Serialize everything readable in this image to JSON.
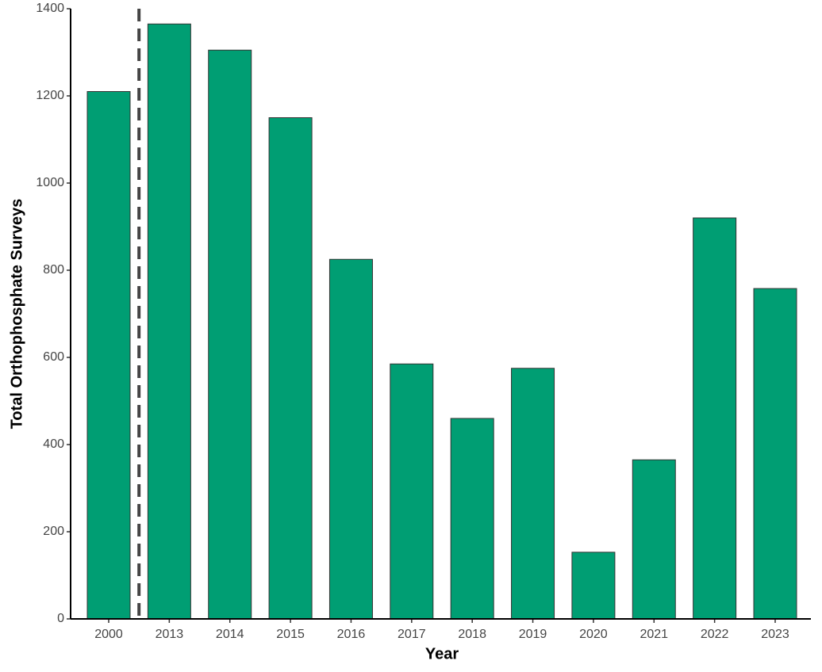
{
  "chart_data": {
    "type": "bar",
    "x_label": "Year",
    "y_label": "Total Orthophosphate Surveys",
    "categories": [
      "2000",
      "2013",
      "2014",
      "2015",
      "2016",
      "2017",
      "2018",
      "2019",
      "2020",
      "2021",
      "2022",
      "2023"
    ],
    "values": [
      1210,
      1365,
      1305,
      1150,
      825,
      585,
      460,
      575,
      153,
      365,
      920,
      758
    ],
    "color": "#009e73",
    "ylim": [
      0,
      1400
    ],
    "yticks": [
      0,
      200,
      400,
      600,
      800,
      1000,
      1200,
      1400
    ],
    "grid": false
  }
}
